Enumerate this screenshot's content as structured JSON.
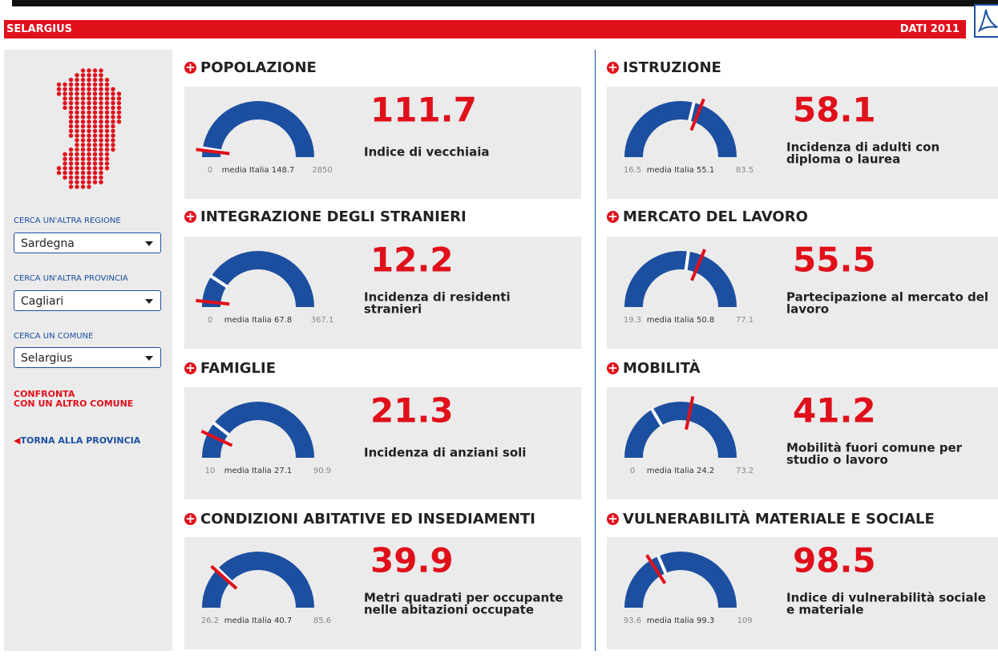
{
  "header": {
    "title": "SELARGIUS",
    "year": "DATI 2011"
  },
  "sidebar": {
    "region_label": "CERCA UN'ALTRA REGIONE",
    "region": "Sardegna",
    "province_label": "CERCA UN'ALTRA PROVINCIA",
    "province": "Cagliari",
    "comune_label": "CERCA UN COMUNE",
    "comune": "Selargius",
    "compare": [
      "CONFRONTA",
      "CON UN ALTRO COMUNE"
    ],
    "back": "TORNA ALLA PROVINCIA"
  },
  "panels": [
    {
      "title": "POPOLAZIONE",
      "value": 111.7,
      "min": 0,
      "max": 2850,
      "avg_label": "media Italia",
      "avg": 148.7,
      "description": [
        "Indice di vecchiaia"
      ]
    },
    {
      "title": "INTEGRAZIONE DEGLI STRANIERI",
      "value": 12.2,
      "min": 0,
      "max": 367.1,
      "avg_label": "media Italia",
      "avg": 67.8,
      "description": [
        "Incidenza di residenti",
        "stranieri"
      ]
    },
    {
      "title": "FAMIGLIE",
      "value": 21.3,
      "min": 10,
      "max": 90.9,
      "avg_label": "media Italia",
      "avg": 27.1,
      "description": [
        "Incidenza di anziani soli"
      ]
    },
    {
      "title": "CONDIZIONI ABITATIVE ED INSEDIAMENTI",
      "value": 39.9,
      "min": 26.2,
      "max": 85.6,
      "avg_label": "media Italia",
      "avg": 40.7,
      "description": [
        "Metri quadrati per occupante",
        "nelle abitazioni occupate"
      ]
    },
    {
      "title": "ISTRUZIONE",
      "value": 58.1,
      "min": 16.5,
      "max": 83.5,
      "avg_label": "media Italia",
      "avg": 55.1,
      "description": [
        "Incidenza di adulti con",
        "diploma o laurea"
      ]
    },
    {
      "title": "MERCATO DEL LAVORO",
      "value": 55.5,
      "min": 19.3,
      "max": 77.1,
      "avg_label": "media Italia",
      "avg": 50.8,
      "description": [
        "Partecipazione al mercato del",
        "lavoro"
      ]
    },
    {
      "title": "MOBILITÀ",
      "value": 41.2,
      "min": 0,
      "max": 73.2,
      "avg_label": "media Italia",
      "avg": 24.2,
      "description": [
        "Mobilità fuori comune per",
        "studio o lavoro"
      ]
    },
    {
      "title": "VULNERABILITÀ MATERIALE E SOCIALE",
      "value": 98.5,
      "min": 93.6,
      "max": 109,
      "avg_label": "media Italia",
      "avg": 99.3,
      "description": [
        "Indice di vulnerabilità sociale",
        "e materiale"
      ]
    }
  ]
}
